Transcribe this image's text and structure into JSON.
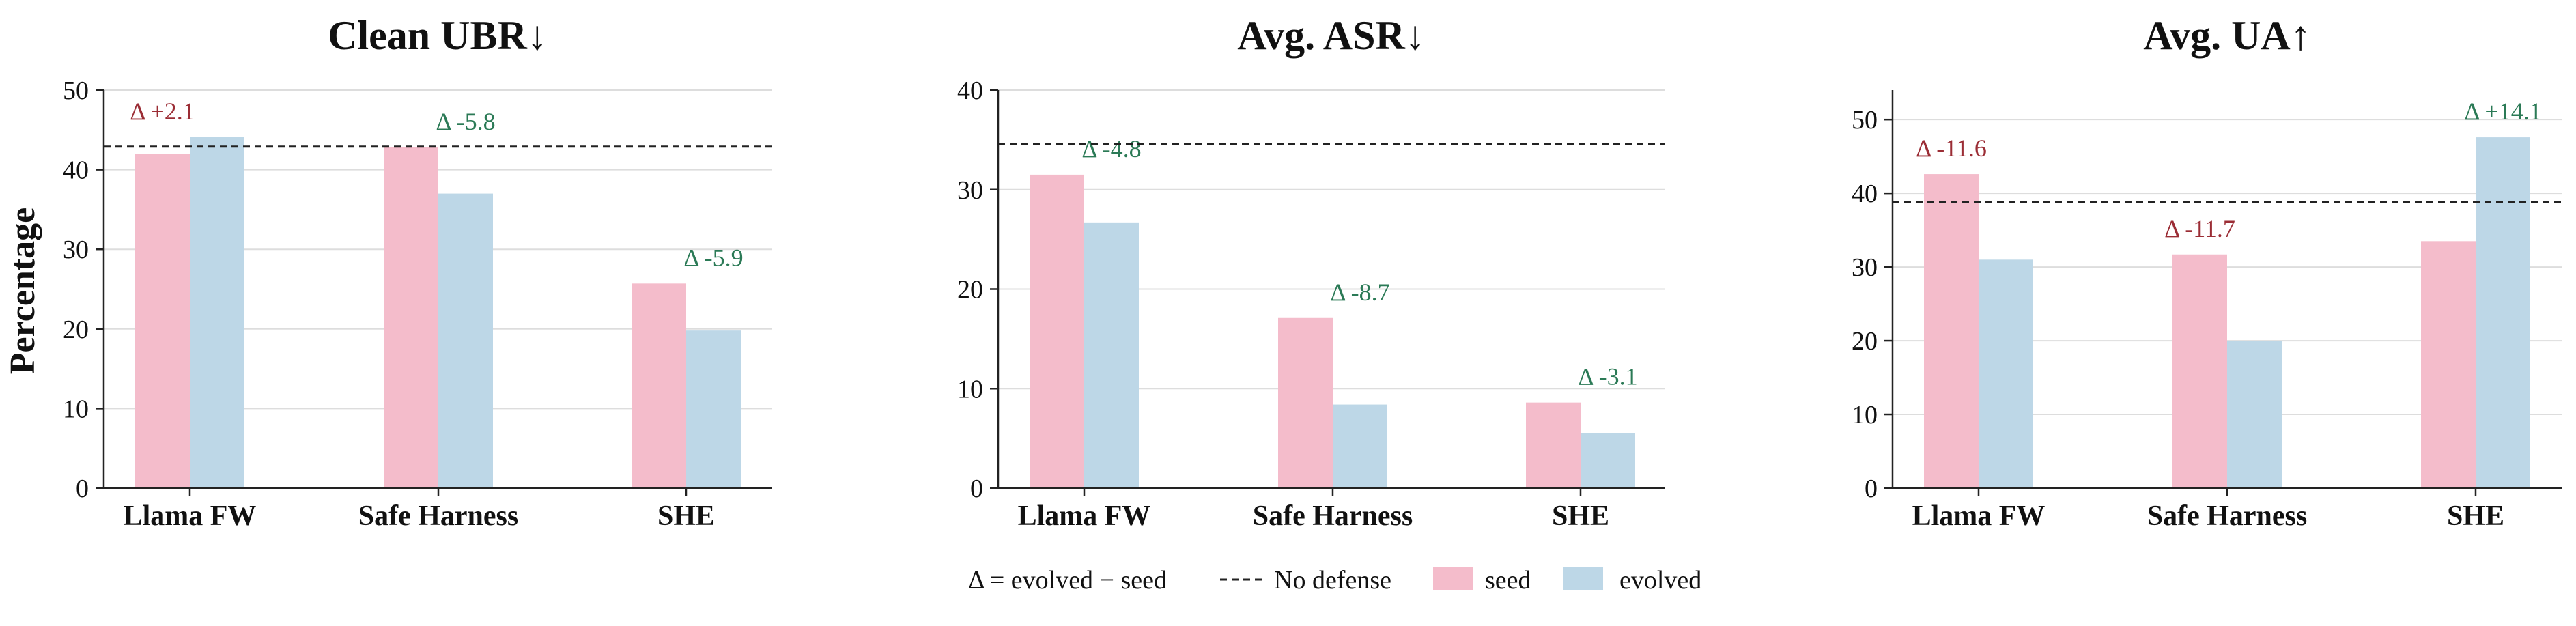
{
  "colors": {
    "seed": "#f4bccb",
    "evolved": "#bdd7e7",
    "delta_up": "#9b2d35",
    "delta_down": "#2b7a56",
    "grid": "#dddddd",
    "axis": "#222222"
  },
  "ylabel": "Percentage",
  "legend": {
    "delta_def": "Δ = evolved − seed",
    "no_defense": "No defense",
    "seed": "seed",
    "evolved": "evolved"
  },
  "chart_data": [
    {
      "type": "bar",
      "title": "Clean UBR↓",
      "categories": [
        "Llama FW",
        "Safe Harness",
        "SHE"
      ],
      "series": [
        {
          "name": "seed",
          "values": [
            42.0,
            42.8,
            25.7
          ]
        },
        {
          "name": "evolved",
          "values": [
            44.1,
            37.0,
            19.8
          ]
        }
      ],
      "deltas": [
        "Δ +2.1",
        "Δ -5.8",
        "Δ -5.9"
      ],
      "delta_dir": [
        "up",
        "down",
        "down"
      ],
      "no_defense": 42.9,
      "ylim": [
        0,
        50
      ],
      "yticks": [
        0,
        10,
        20,
        30,
        40,
        50
      ],
      "grid": true
    },
    {
      "type": "bar",
      "title": "Avg. ASR↓",
      "categories": [
        "Llama FW",
        "Safe Harness",
        "SHE"
      ],
      "series": [
        {
          "name": "seed",
          "values": [
            31.5,
            17.1,
            8.6
          ]
        },
        {
          "name": "evolved",
          "values": [
            26.7,
            8.4,
            5.5
          ]
        }
      ],
      "deltas": [
        "Δ -4.8",
        "Δ -8.7",
        "Δ -3.1"
      ],
      "delta_dir": [
        "down",
        "down",
        "down"
      ],
      "no_defense": 34.6,
      "ylim": [
        0,
        40
      ],
      "yticks": [
        0,
        10,
        20,
        30,
        40
      ],
      "grid": true
    },
    {
      "type": "bar",
      "title": "Avg. UA↑",
      "categories": [
        "Llama FW",
        "Safe Harness",
        "SHE"
      ],
      "series": [
        {
          "name": "seed",
          "values": [
            42.6,
            31.7,
            33.5
          ]
        },
        {
          "name": "evolved",
          "values": [
            31.0,
            20.0,
            47.6
          ]
        }
      ],
      "deltas": [
        "Δ -11.6",
        "Δ -11.7",
        "Δ +14.1"
      ],
      "delta_dir": [
        "up",
        "up",
        "down"
      ],
      "no_defense": 38.8,
      "ylim": [
        0,
        54
      ],
      "yticks": [
        0,
        10,
        20,
        30,
        40,
        50
      ],
      "grid": true
    }
  ]
}
